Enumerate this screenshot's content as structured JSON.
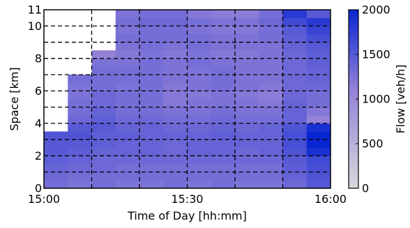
{
  "chart_data": {
    "type": "heatmap",
    "xlabel": "Time of Day [hh:mm]",
    "ylabel": "Space [km]",
    "x_ticks": [
      "15:00",
      "15:30",
      "16:00"
    ],
    "x_range": [
      "15:00",
      "16:00"
    ],
    "y_ticks": [
      "0",
      "2",
      "4",
      "6",
      "8",
      "10",
      "11"
    ],
    "ylim": [
      0,
      11
    ],
    "colorbar": {
      "label": "Flow [veh/h]",
      "ticks": [
        "0",
        "500",
        "1000",
        "1500",
        "2000"
      ],
      "range": [
        0,
        2000
      ],
      "color_low": "#d8d8dc",
      "color_mid": "#9482d8",
      "color_high": "#0a26d2"
    },
    "grid": "dashed",
    "time_bins": [
      "15:00",
      "15:05",
      "15:10",
      "15:15",
      "15:20",
      "15:25",
      "15:30",
      "15:35",
      "15:40",
      "15:45",
      "15:50",
      "15:55"
    ],
    "space_bins_km": [
      0,
      0.5,
      1,
      1.5,
      2,
      2.5,
      3,
      3.5,
      4,
      4.5,
      5,
      5.5,
      6,
      6.5,
      7,
      7.5,
      8,
      8.5,
      9,
      9.5,
      10,
      10.5
    ],
    "flow_grid_note": "rows: space bins from 0 km upward; columns: time bins; null = no data",
    "flow": [
      [
        1300,
        1250,
        1300,
        1250,
        1250,
        1300,
        1250,
        1300,
        1250,
        1250,
        1350,
        1500
      ],
      [
        1350,
        1300,
        1300,
        1300,
        1300,
        1300,
        1300,
        1300,
        1300,
        1300,
        1400,
        1550
      ],
      [
        1400,
        1350,
        1350,
        1300,
        1300,
        1300,
        1300,
        1300,
        1300,
        1300,
        1450,
        1600
      ],
      [
        1450,
        1400,
        1350,
        1350,
        1350,
        1350,
        1350,
        1350,
        1350,
        1350,
        1500,
        1650
      ],
      [
        1500,
        1450,
        1400,
        1400,
        1400,
        1350,
        1400,
        1400,
        1350,
        1400,
        1550,
        1900
      ],
      [
        1500,
        1500,
        1450,
        1400,
        1400,
        1350,
        1400,
        1400,
        1400,
        1400,
        1600,
        2000
      ],
      [
        1550,
        1550,
        1450,
        1450,
        1400,
        1400,
        1400,
        1450,
        1400,
        1400,
        1600,
        2000
      ],
      [
        null,
        1500,
        1500,
        1400,
        1400,
        1350,
        1350,
        1400,
        1350,
        1400,
        1550,
        1900
      ],
      [
        null,
        1350,
        1450,
        1350,
        1350,
        1300,
        1300,
        1350,
        1300,
        1300,
        1400,
        1100
      ],
      [
        null,
        1300,
        1400,
        1300,
        1300,
        1250,
        1250,
        1300,
        1250,
        1250,
        1400,
        1200
      ],
      [
        null,
        1300,
        1350,
        1300,
        1300,
        1200,
        1250,
        1250,
        1250,
        1200,
        1400,
        1300
      ],
      [
        null,
        1250,
        1350,
        1300,
        1300,
        1200,
        1200,
        1250,
        1200,
        1150,
        1350,
        1300
      ],
      [
        null,
        1250,
        1300,
        1250,
        1300,
        1200,
        1250,
        1300,
        1250,
        1200,
        1350,
        1350
      ],
      [
        null,
        1300,
        1300,
        1300,
        1300,
        1250,
        1250,
        1300,
        1250,
        1250,
        1350,
        1400
      ],
      [
        null,
        null,
        1300,
        1300,
        1300,
        1250,
        1250,
        1300,
        1250,
        1250,
        1350,
        1400
      ],
      [
        null,
        null,
        1250,
        1250,
        1300,
        1250,
        1300,
        1250,
        1250,
        1250,
        1350,
        1450
      ],
      [
        null,
        null,
        1100,
        1200,
        1250,
        1200,
        1250,
        1200,
        1200,
        1250,
        1350,
        1450
      ],
      [
        null,
        null,
        null,
        1250,
        1300,
        1250,
        1300,
        1250,
        1250,
        1250,
        1400,
        1500
      ],
      [
        null,
        null,
        null,
        1300,
        1300,
        1300,
        1300,
        1250,
        1250,
        1300,
        1450,
        1600
      ],
      [
        null,
        null,
        null,
        1250,
        1300,
        1300,
        1250,
        1200,
        1200,
        1300,
        1500,
        1700
      ],
      [
        null,
        null,
        null,
        1300,
        1350,
        1350,
        1300,
        1250,
        1250,
        1350,
        1650,
        1800
      ],
      [
        null,
        null,
        null,
        1250,
        1300,
        1300,
        1200,
        1150,
        1150,
        1300,
        1800,
        1500
      ]
    ]
  }
}
